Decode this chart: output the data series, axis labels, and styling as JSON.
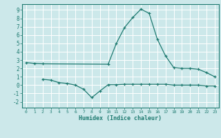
{
  "xlabel": "Humidex (Indice chaleur)",
  "bg_color": "#cce8ea",
  "grid_color": "#ffffff",
  "line_color": "#1e7a70",
  "spine_color": "#1e7a70",
  "xlim": [
    -0.5,
    23.5
  ],
  "ylim": [
    -2.7,
    9.7
  ],
  "xticks": [
    0,
    1,
    2,
    3,
    4,
    5,
    6,
    7,
    8,
    9,
    10,
    11,
    12,
    13,
    14,
    15,
    16,
    17,
    18,
    19,
    20,
    21,
    22,
    23
  ],
  "yticks": [
    -2,
    -1,
    0,
    1,
    2,
    3,
    4,
    5,
    6,
    7,
    8,
    9
  ],
  "line1_x": [
    0,
    1,
    2,
    10,
    11,
    12,
    13,
    14,
    15,
    16,
    17,
    18,
    19,
    20,
    21,
    22,
    23
  ],
  "line1_y": [
    2.7,
    2.6,
    2.55,
    2.5,
    5.0,
    6.9,
    8.1,
    9.1,
    8.6,
    5.5,
    3.5,
    2.1,
    2.0,
    2.0,
    1.9,
    1.5,
    1.0
  ],
  "line2_x": [
    2,
    3,
    4,
    5,
    6,
    7,
    8,
    9,
    10,
    11,
    12,
    13,
    14,
    15,
    16,
    17,
    18,
    19,
    20,
    21,
    22,
    23
  ],
  "line2_y": [
    0.7,
    0.6,
    0.3,
    0.2,
    0.0,
    -0.5,
    -1.5,
    -0.7,
    0.05,
    0.05,
    0.1,
    0.1,
    0.1,
    0.1,
    0.1,
    0.1,
    0.0,
    0.0,
    0.0,
    0.0,
    -0.1,
    -0.1
  ],
  "xtick_fontsize": 4.5,
  "ytick_fontsize": 5.5,
  "xlabel_fontsize": 6.0,
  "linewidth": 0.9,
  "markersize": 3.0,
  "markeredgewidth": 0.9
}
